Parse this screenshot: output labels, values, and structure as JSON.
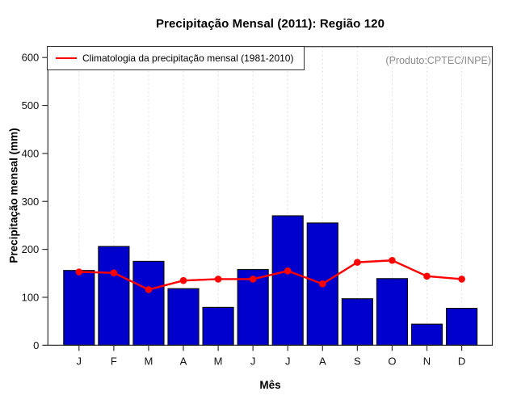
{
  "title": "Precipitação Mensal (2011): Região 120",
  "annotation": "(Produto:CPTEC/INPE)",
  "legend": {
    "label": "Climatologia da precipitação mensal (1981-2010)"
  },
  "axes": {
    "xlabel": "Mês",
    "ylabel": "Precipitação mensal (mm)"
  },
  "chart_data": {
    "type": "bar",
    "title": "Precipitação Mensal (2011): Região 120",
    "xlabel": "Mês",
    "ylabel": "Precipitação mensal (mm)",
    "categories": [
      "J",
      "F",
      "M",
      "A",
      "M",
      "J",
      "J",
      "A",
      "S",
      "O",
      "N",
      "D"
    ],
    "series": [
      {
        "name": "Precipitação mensal 2011",
        "type": "bar",
        "color": "#0000CD",
        "values": [
          156,
          206,
          175,
          118,
          79,
          158,
          270,
          255,
          97,
          139,
          44,
          77
        ]
      },
      {
        "name": "Climatologia da precipitação mensal (1981-2010)",
        "type": "line",
        "color": "#FF0000",
        "values": [
          153,
          151,
          116,
          135,
          138,
          138,
          155,
          128,
          173,
          177,
          144,
          138
        ]
      }
    ],
    "yticks": [
      0,
      100,
      200,
      300,
      400,
      500,
      600
    ],
    "ylim": [
      0,
      622
    ],
    "grid": "vertical-dotted",
    "legend_position": "top-left",
    "annotation": "(Produto:CPTEC/INPE)"
  },
  "colors": {
    "bar_fill": "#0000CD",
    "bar_stroke": "#101010",
    "line": "#FF0000",
    "grid": "#E0E0E0",
    "axis": "#333333",
    "tick_text": "#111111",
    "annotation": "#8C8C8C"
  }
}
